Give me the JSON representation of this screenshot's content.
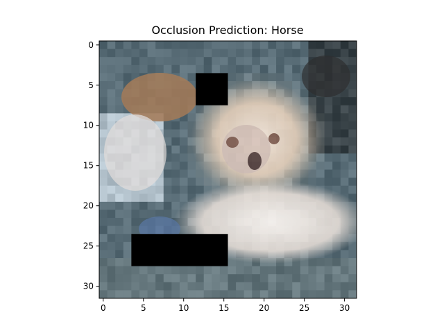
{
  "chart_data": {
    "type": "image",
    "title": "Occlusion Prediction: Horse",
    "xlabel": "",
    "ylabel": "",
    "image_size": [
      32,
      32
    ],
    "xlim": [
      -0.5,
      31.5
    ],
    "ylim": [
      31.5,
      -0.5
    ],
    "xticks": [
      0,
      5,
      10,
      15,
      20,
      25,
      30
    ],
    "yticks": [
      0,
      5,
      10,
      15,
      20,
      25,
      30
    ],
    "image_description": "pixelated photo of a fluffy cream-colored puppy lying on a blue-grey background",
    "occlusion_patches": [
      {
        "x_range": [
          12,
          15
        ],
        "y_range": [
          4,
          7
        ]
      },
      {
        "x_range": [
          4,
          15
        ],
        "y_range": [
          24,
          27
        ]
      }
    ]
  }
}
